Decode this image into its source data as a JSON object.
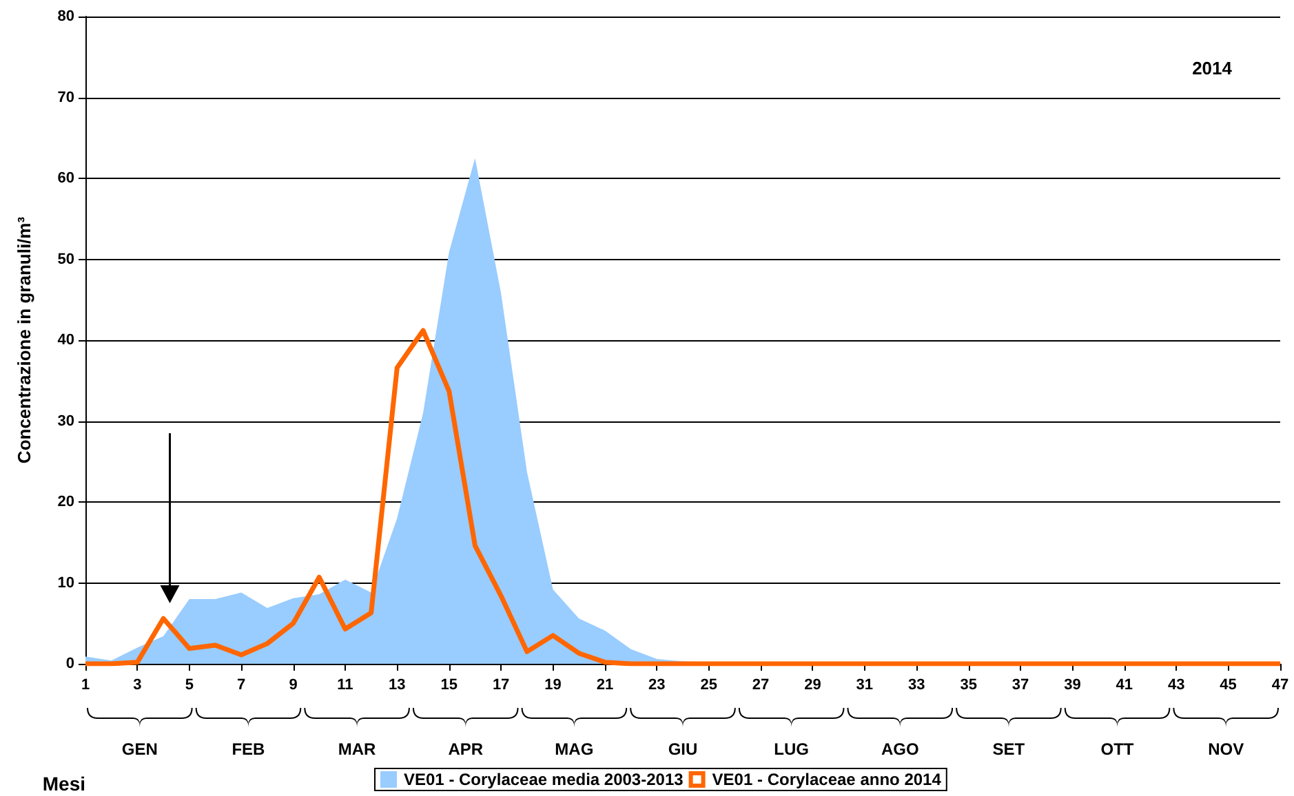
{
  "chart_data": {
    "type": "area",
    "title": "2014",
    "xlabel": "Mesi",
    "ylabel": "Concentrazione in granuli/m³",
    "x": [
      1,
      2,
      3,
      4,
      5,
      6,
      7,
      8,
      9,
      10,
      11,
      12,
      13,
      14,
      15,
      16,
      17,
      18,
      19,
      20,
      21,
      22,
      23,
      24,
      25,
      26,
      27,
      28,
      29,
      30,
      31,
      32,
      33,
      34,
      35,
      36,
      37,
      38,
      39,
      40,
      41,
      42,
      43,
      44,
      45,
      46,
      47
    ],
    "series": [
      {
        "name": "VE01 - Corylaceae media 2003-2013",
        "color": "#99ccff",
        "values": [
          0.9,
          0.4,
          2,
          3.4,
          8,
          8,
          8.8,
          6.9,
          8.1,
          8.6,
          10.4,
          8.8,
          18,
          31,
          50.9,
          62.5,
          45.8,
          23.7,
          9.2,
          5.6,
          4.1,
          1.8,
          0.6,
          0.3,
          0.2,
          0.2,
          0.2,
          0.1,
          0.1,
          0.1,
          0.1,
          0.1,
          0.1,
          0.1,
          0.1,
          0.1,
          0.1,
          0.1,
          0.1,
          0.1,
          0.1,
          0.1,
          0.1,
          0.1,
          0.1,
          0.1,
          0.1
        ]
      },
      {
        "name": "VE01 - Corylaceae anno 2014",
        "type": "line",
        "color": "#ff6600",
        "values": [
          0,
          0,
          0.2,
          5.6,
          1.9,
          2.3,
          1.1,
          2.5,
          5,
          10.7,
          4.3,
          6.3,
          36.6,
          41.2,
          33.7,
          14.6,
          8.4,
          1.5,
          3.5,
          1.3,
          0.2,
          0,
          0,
          0,
          0,
          0,
          0,
          0,
          0,
          0,
          0,
          0,
          0,
          0,
          0,
          0,
          0,
          0,
          0,
          0,
          0,
          0,
          0,
          0,
          0,
          0,
          0
        ]
      }
    ],
    "annotations": [
      "GEN",
      "FEB",
      "MAR",
      "APR",
      "MAG",
      "GIU",
      "LUG",
      "AGO",
      "SET",
      "OTT",
      "NOV"
    ],
    "xlim": [
      1,
      47
    ],
    "xticks": [
      1,
      3,
      5,
      7,
      9,
      11,
      13,
      15,
      17,
      19,
      21,
      23,
      25,
      27,
      29,
      31,
      33,
      35,
      37,
      39,
      41,
      43,
      45,
      47
    ],
    "ylim": [
      0,
      80
    ],
    "yticks": [
      0,
      10,
      20,
      30,
      40,
      50,
      60,
      70,
      80
    ],
    "grid": "y",
    "legend": "bottom",
    "marker": "none",
    "line_style": "solid"
  }
}
